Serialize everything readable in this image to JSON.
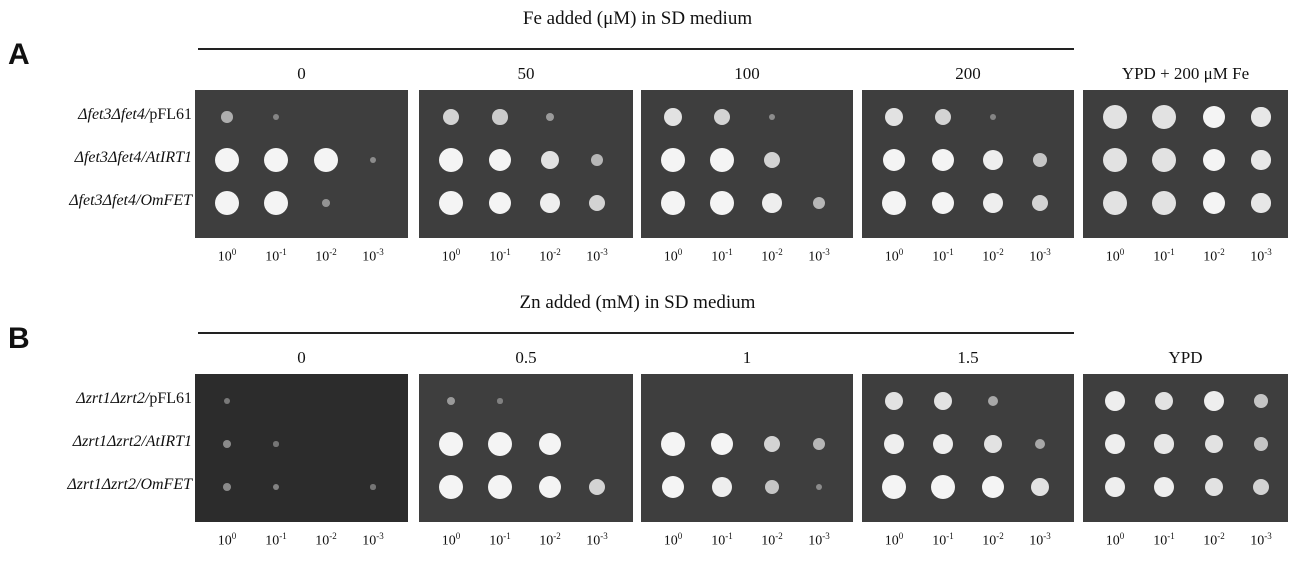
{
  "panels": [
    {
      "letter": "A",
      "header": "Fe added (μM) in SD medium",
      "conditions": [
        "0",
        "50",
        "100",
        "200",
        "YPD + 200 μM Fe"
      ],
      "strains": [
        {
          "prefix": "Δfet3Δfet4/",
          "plasmid": "pFL61",
          "plasmid_italic": false
        },
        {
          "prefix": "Δfet3Δfet4/",
          "plasmid": "AtIRT1",
          "plasmid_italic": true
        },
        {
          "prefix": "Δfet3Δfet4/",
          "plasmid": "OmFET",
          "plasmid_italic": true
        }
      ],
      "growth": [
        [
          [
            0.35,
            0.05,
            0,
            0
          ],
          [
            1,
            1,
            1,
            0.1
          ],
          [
            1,
            1,
            0.15,
            0
          ]
        ],
        [
          [
            0.6,
            0.55,
            0.2,
            0
          ],
          [
            1,
            0.9,
            0.7,
            0.4
          ],
          [
            1,
            0.9,
            0.8,
            0.6
          ]
        ],
        [
          [
            0.7,
            0.6,
            0.1,
            0
          ],
          [
            1,
            1,
            0.6,
            0
          ],
          [
            1,
            1,
            0.8,
            0.4
          ]
        ],
        [
          [
            0.7,
            0.6,
            0.05,
            0
          ],
          [
            0.9,
            0.9,
            0.8,
            0.5
          ],
          [
            1,
            0.9,
            0.8,
            0.6
          ]
        ],
        [
          [
            1,
            1,
            0.9,
            0.75
          ],
          [
            1,
            1,
            0.9,
            0.75
          ],
          [
            1,
            1,
            0.9,
            0.75
          ]
        ]
      ]
    },
    {
      "letter": "B",
      "header": "Zn added (mM) in SD medium",
      "conditions": [
        "0",
        "0.5",
        "1",
        "1.5",
        "YPD"
      ],
      "strains": [
        {
          "prefix": "Δzrt1Δzrt2/",
          "plasmid": "pFL61",
          "plasmid_italic": false
        },
        {
          "prefix": "Δzrt1Δzrt2/",
          "plasmid": "AtIRT1",
          "plasmid_italic": true
        },
        {
          "prefix": "Δzrt1Δzrt2/",
          "plasmid": "OmFET",
          "plasmid_italic": true
        }
      ],
      "growth": [
        [
          [
            0.05,
            0,
            0,
            0
          ],
          [
            0.15,
            0.02,
            0,
            0
          ],
          [
            0.15,
            0.1,
            0,
            0.02
          ]
        ],
        [
          [
            0.2,
            0.02,
            0,
            0
          ],
          [
            1,
            1,
            0.9,
            0
          ],
          [
            1,
            1,
            0.9,
            0.6
          ]
        ],
        [
          [
            0,
            0,
            0,
            0
          ],
          [
            1,
            0.9,
            0.6,
            0.4
          ],
          [
            0.9,
            0.8,
            0.5,
            0.1
          ]
        ],
        [
          [
            0.7,
            0.7,
            0.3,
            0
          ],
          [
            0.8,
            0.8,
            0.7,
            0.3
          ],
          [
            1,
            1,
            0.9,
            0.7
          ]
        ],
        [
          [
            0.8,
            0.7,
            0.8,
            0.5
          ],
          [
            0.8,
            0.75,
            0.7,
            0.5
          ],
          [
            0.8,
            0.8,
            0.7,
            0.6
          ]
        ]
      ]
    }
  ],
  "dilutions": [
    "10",
    "10",
    "10",
    "10"
  ],
  "dilution_exponents": [
    "0",
    "-1",
    "-2",
    "-3"
  ]
}
